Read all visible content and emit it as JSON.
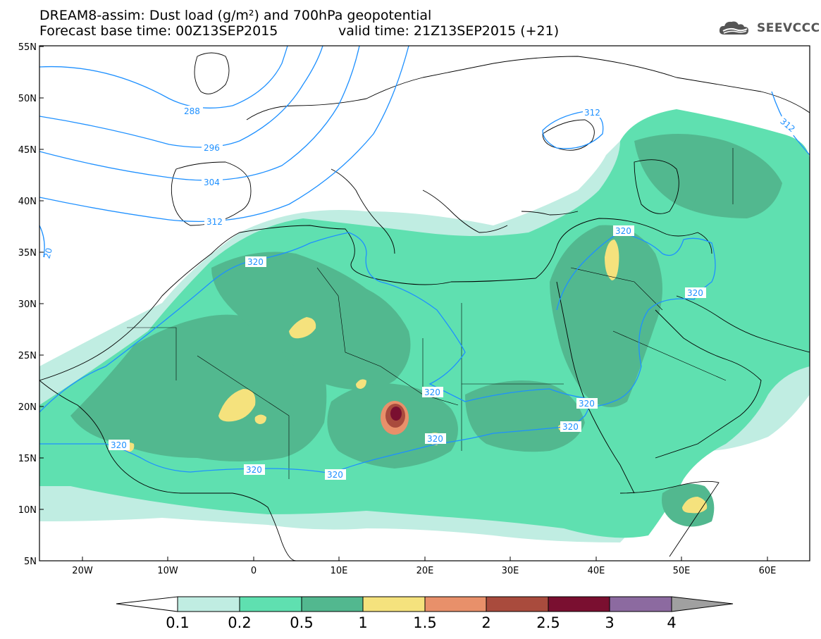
{
  "header": {
    "line1": "DREAM8-assim: Dust load (g/m²) and 700hPa geopotential",
    "line2": "Forecast base time: 00Z13SEP2015",
    "line3": "valid time: 21Z13SEP2015 (+21)"
  },
  "logo": {
    "text": "SEEVCCC",
    "icon": "cloud-icon"
  },
  "map": {
    "lon_range": [
      -25,
      65
    ],
    "lat_range": [
      5,
      55
    ],
    "lat_ticks": [
      "5N",
      "10N",
      "15N",
      "20N",
      "25N",
      "30N",
      "35N",
      "40N",
      "45N",
      "50N",
      "55N"
    ],
    "lon_ticks": [
      "20W",
      "10W",
      "0",
      "10E",
      "20E",
      "30E",
      "40E",
      "50E",
      "60E"
    ],
    "contour_color": "#1e90ff",
    "contour_labels": [
      "288",
      "296",
      "304",
      "312",
      "320",
      "320",
      "320",
      "320",
      "320",
      "320",
      "320",
      "320",
      "320",
      "312",
      "312",
      "20"
    ]
  },
  "colorbar": {
    "ticks": [
      "0.1",
      "0.2",
      "0.5",
      "1",
      "1.5",
      "2",
      "2.5",
      "3",
      "4"
    ],
    "colors": [
      "#c0ede2",
      "#5fe0b0",
      "#52b88f",
      "#f5e27d",
      "#e8906a",
      "#a94b3d",
      "#7a0f30",
      "#8c6aa0"
    ],
    "under_color": "#ffffff",
    "over_color": "#a0a0a0"
  }
}
